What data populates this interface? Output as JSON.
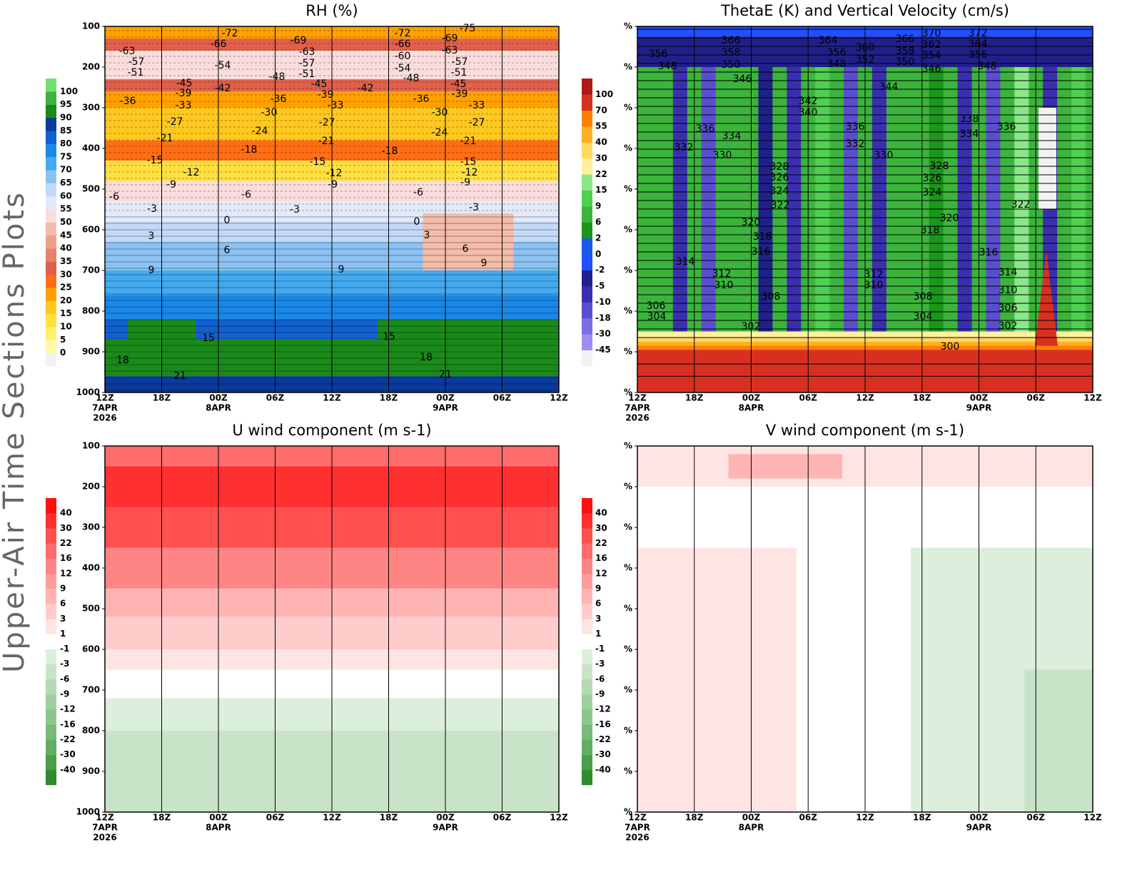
{
  "figure_label": "Upper-Air Time Sections Plots",
  "chart_data": [
    {
      "type": "contour",
      "title": "RH (%)",
      "xlim": [
        0,
        48
      ],
      "xticks": [
        {
          "value": 0,
          "label": "12Z"
        },
        {
          "value": 6,
          "label": "18Z"
        },
        {
          "value": 12,
          "label": "00Z"
        },
        {
          "value": 18,
          "label": "06Z"
        },
        {
          "value": 24,
          "label": "12Z"
        },
        {
          "value": 30,
          "label": "18Z"
        },
        {
          "value": 36,
          "label": "00Z"
        },
        {
          "value": 42,
          "label": "06Z"
        },
        {
          "value": 48,
          "label": "12Z"
        }
      ],
      "xtick_dates": [
        {
          "value": 0,
          "label": "7APR"
        },
        {
          "value": 12,
          "label": "8APR"
        },
        {
          "value": 36,
          "label": "9APR"
        }
      ],
      "xtick_year": {
        "value": 0,
        "label": "2026"
      },
      "ylim": [
        1000,
        100
      ],
      "yticks": [
        100,
        200,
        300,
        400,
        500,
        600,
        700,
        800,
        900,
        1000
      ],
      "colorbar": {
        "levels": [
          0,
          5,
          10,
          15,
          20,
          25,
          30,
          35,
          40,
          45,
          50,
          55,
          60,
          65,
          70,
          75,
          80,
          85,
          90,
          95,
          100
        ],
        "colors": [
          "#f2f2f2",
          "#fffba8",
          "#fff070",
          "#ffe040",
          "#ffc820",
          "#ffa000",
          "#ff6e14",
          "#e0604c",
          "#e8806a",
          "#f0a088",
          "#f4bcaa",
          "#fadcdc",
          "#e2eafa",
          "#c2daf8",
          "#8cc2f2",
          "#44aaf0",
          "#1a88e8",
          "#1060d0",
          "#0a3a9c",
          "#1a8a1a",
          "#3cb43c",
          "#70e070"
        ]
      },
      "contour_labels": [
        -72,
        -66,
        -54,
        -69,
        -63,
        -57,
        -51,
        -48,
        -42,
        -63,
        -57,
        -51,
        -36,
        -45,
        -39,
        -33,
        -27,
        -21,
        -15,
        -12,
        -9,
        -6,
        -3,
        0,
        3,
        6,
        9,
        15,
        18,
        21,
        -45,
        -39,
        -33,
        -36,
        -30,
        -24,
        -18,
        -27,
        -21,
        -15,
        -12,
        -9,
        -6,
        -3,
        9,
        -42,
        -72,
        -66,
        -60,
        -54,
        -48,
        -36,
        -30,
        -24,
        -18,
        -6,
        0,
        3,
        6,
        9,
        15,
        18,
        21,
        -75,
        -69,
        -63,
        -57,
        -51,
        -45,
        -39,
        -33,
        -27,
        -21,
        -15,
        -12,
        -9,
        -3
      ]
    },
    {
      "type": "contour",
      "title": "ThetaE (K) and Vertical Velocity (cm/s)",
      "xlim": [
        0,
        48
      ],
      "xticks": [
        {
          "value": 0,
          "label": "12Z"
        },
        {
          "value": 6,
          "label": "18Z"
        },
        {
          "value": 12,
          "label": "00Z"
        },
        {
          "value": 18,
          "label": "06Z"
        },
        {
          "value": 24,
          "label": "12Z"
        },
        {
          "value": 30,
          "label": "18Z"
        },
        {
          "value": 36,
          "label": "00Z"
        },
        {
          "value": 42,
          "label": "06Z"
        },
        {
          "value": 48,
          "label": "12Z"
        }
      ],
      "xtick_dates": [
        {
          "value": 0,
          "label": "7APR"
        },
        {
          "value": 12,
          "label": "8APR"
        },
        {
          "value": 36,
          "label": "9APR"
        }
      ],
      "xtick_year": {
        "value": 0,
        "label": "2026"
      },
      "ylim": [
        1000,
        100
      ],
      "yticks": [
        {
          "value": 100,
          "label": "%"
        },
        {
          "value": 200,
          "label": "%"
        },
        {
          "value": 300,
          "label": "%"
        },
        {
          "value": 400,
          "label": "%"
        },
        {
          "value": 500,
          "label": "%"
        },
        {
          "value": 600,
          "label": "%"
        },
        {
          "value": 700,
          "label": "%"
        },
        {
          "value": 800,
          "label": "%"
        },
        {
          "value": 900,
          "label": "%"
        },
        {
          "value": 1000,
          "label": "%"
        }
      ],
      "colorbar": {
        "levels": [
          -45,
          -30,
          -18,
          -10,
          -5,
          -2,
          0,
          2,
          6,
          9,
          15,
          22,
          30,
          40,
          55,
          70,
          100
        ],
        "colors": [
          "#f2f2f2",
          "#9a8ef0",
          "#7a6ee0",
          "#5a4ed0",
          "#3a2eb0",
          "#20208c",
          "#2050ff",
          "#1a5ae6",
          "#1a961a",
          "#3cb43c",
          "#50d050",
          "#8ae88a",
          "#fff0a0",
          "#ffd860",
          "#ffb020",
          "#ff8000",
          "#d83020",
          "#b01818"
        ]
      },
      "contour_labels": [
        356,
        348,
        366,
        358,
        350,
        346,
        364,
        356,
        348,
        360,
        352,
        366,
        358,
        350,
        370,
        362,
        354,
        346,
        372,
        364,
        356,
        348,
        344,
        342,
        340,
        338,
        334,
        336,
        336,
        334,
        332,
        330,
        336,
        332,
        330,
        328,
        326,
        324,
        322,
        328,
        326,
        324,
        322,
        320,
        320,
        318,
        318,
        316,
        316,
        314,
        314,
        312,
        312,
        310,
        310,
        310,
        308,
        308,
        306,
        306,
        304,
        304,
        302,
        302,
        300
      ]
    },
    {
      "type": "contour",
      "title": "U wind component (m s-1)",
      "xlim": [
        0,
        48
      ],
      "xticks": [
        {
          "value": 0,
          "label": "12Z"
        },
        {
          "value": 6,
          "label": "18Z"
        },
        {
          "value": 12,
          "label": "00Z"
        },
        {
          "value": 18,
          "label": "06Z"
        },
        {
          "value": 24,
          "label": "12Z"
        },
        {
          "value": 30,
          "label": "18Z"
        },
        {
          "value": 36,
          "label": "00Z"
        },
        {
          "value": 42,
          "label": "06Z"
        },
        {
          "value": 48,
          "label": "12Z"
        }
      ],
      "xtick_dates": [
        {
          "value": 0,
          "label": "7APR"
        },
        {
          "value": 12,
          "label": "8APR"
        },
        {
          "value": 36,
          "label": "9APR"
        }
      ],
      "xtick_year": {
        "value": 0,
        "label": "2026"
      },
      "ylim": [
        1000,
        100
      ],
      "yticks": [
        100,
        200,
        300,
        400,
        500,
        600,
        700,
        800,
        900,
        1000
      ],
      "colorbar": {
        "levels": [
          -40,
          -30,
          -22,
          -16,
          -12,
          -9,
          -6,
          -3,
          -1,
          1,
          3,
          6,
          9,
          12,
          16,
          22,
          30,
          40
        ],
        "colors": [
          "#2e8b2e",
          "#4a9e4a",
          "#62ad62",
          "#78ba78",
          "#8cc68c",
          "#a0d0a0",
          "#b4dab4",
          "#c8e4c8",
          "#dceedc",
          "#ffffff",
          "#ffe4e4",
          "#ffcccc",
          "#ffb4b4",
          "#ff9c9c",
          "#ff8484",
          "#ff6c6c",
          "#ff5050",
          "#ff3030",
          "#ff1010"
        ]
      }
    },
    {
      "type": "contour",
      "title": "V wind component (m s-1)",
      "xlim": [
        0,
        48
      ],
      "xticks": [
        {
          "value": 0,
          "label": "12Z"
        },
        {
          "value": 6,
          "label": "18Z"
        },
        {
          "value": 12,
          "label": "00Z"
        },
        {
          "value": 18,
          "label": "06Z"
        },
        {
          "value": 24,
          "label": "12Z"
        },
        {
          "value": 30,
          "label": "18Z"
        },
        {
          "value": 36,
          "label": "00Z"
        },
        {
          "value": 42,
          "label": "06Z"
        },
        {
          "value": 48,
          "label": "12Z"
        }
      ],
      "xtick_dates": [
        {
          "value": 0,
          "label": "7APR"
        },
        {
          "value": 12,
          "label": "8APR"
        },
        {
          "value": 36,
          "label": "9APR"
        }
      ],
      "xtick_year": {
        "value": 0,
        "label": "2026"
      },
      "ylim": [
        1000,
        100
      ],
      "yticks": [
        {
          "value": 100,
          "label": "%"
        },
        {
          "value": 200,
          "label": "%"
        },
        {
          "value": 300,
          "label": "%"
        },
        {
          "value": 400,
          "label": "%"
        },
        {
          "value": 500,
          "label": "%"
        },
        {
          "value": 600,
          "label": "%"
        },
        {
          "value": 700,
          "label": "%"
        },
        {
          "value": 800,
          "label": "%"
        },
        {
          "value": 900,
          "label": "%"
        },
        {
          "value": 1000,
          "label": "%"
        }
      ],
      "colorbar": {
        "levels": [
          -40,
          -30,
          -22,
          -16,
          -12,
          -9,
          -6,
          -3,
          -1,
          1,
          3,
          6,
          9,
          12,
          16,
          22,
          30,
          40
        ],
        "colors": [
          "#2e8b2e",
          "#4a9e4a",
          "#62ad62",
          "#78ba78",
          "#8cc68c",
          "#a0d0a0",
          "#b4dab4",
          "#c8e4c8",
          "#dceedc",
          "#ffffff",
          "#ffe4e4",
          "#ffcccc",
          "#ffb4b4",
          "#ff9c9c",
          "#ff8484",
          "#ff6c6c",
          "#ff5050",
          "#ff3030",
          "#ff1010"
        ]
      }
    }
  ]
}
